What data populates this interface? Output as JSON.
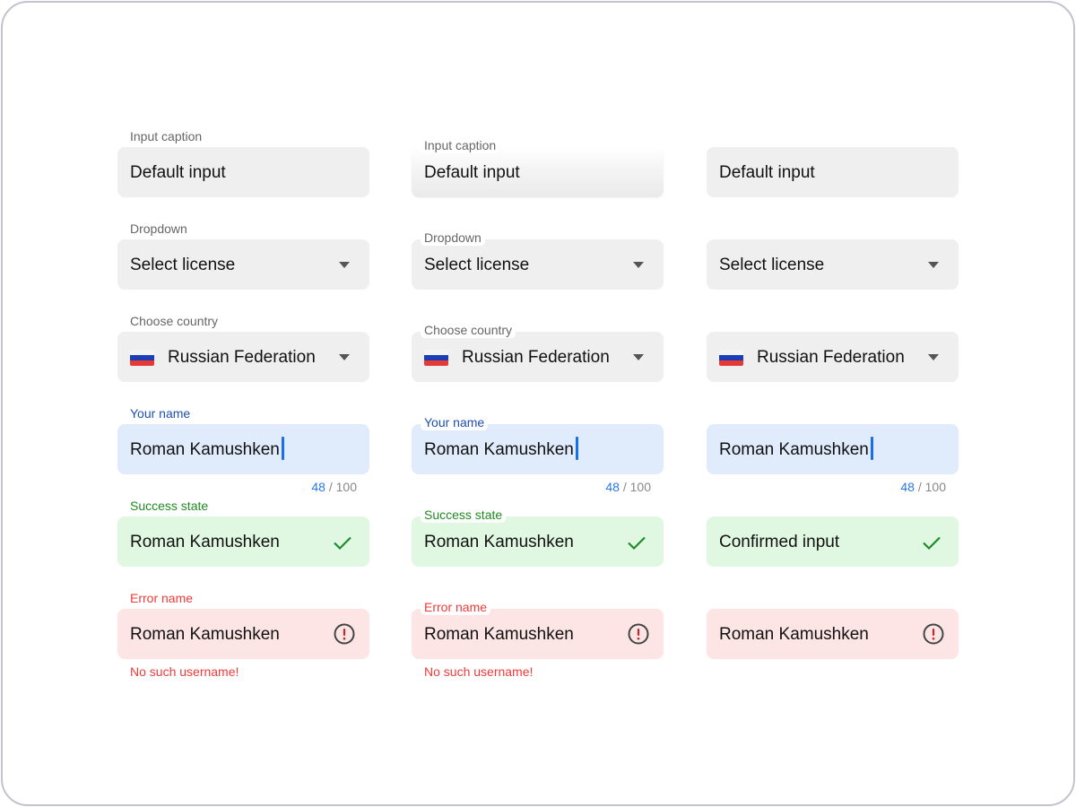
{
  "colors": {
    "field_bg": "#efefef",
    "focus_bg": "#e0ecfc",
    "success_bg": "#e0f7e1",
    "error_bg": "#fde5e5",
    "accent": "#1a6fe8",
    "success": "#208a20",
    "error": "#f03a3a"
  },
  "columns": [
    {
      "variant": "label-above",
      "rows": [
        {
          "type": "text",
          "label": "Input caption",
          "value": "Default input"
        },
        {
          "type": "dropdown",
          "label": "Dropdown",
          "value": "Select license",
          "icon": "caret-down-icon"
        },
        {
          "type": "country",
          "label": "Choose country",
          "value": "Russian Federation",
          "icon": "caret-down-icon",
          "flag": "russia-flag-icon"
        },
        {
          "type": "focus",
          "label": "Your name",
          "value": "Roman Kamushken",
          "counter_current": "48",
          "counter_sep": " / ",
          "counter_max": "100"
        },
        {
          "type": "success",
          "label": "Success state",
          "value": "Roman Kamushken",
          "icon": "check-icon"
        },
        {
          "type": "error",
          "label": "Error name",
          "value": "Roman Kamushken",
          "icon": "alert-circle-icon",
          "helper": "No such username!"
        }
      ]
    },
    {
      "variant": "label-inset",
      "rows": [
        {
          "type": "text",
          "label": "Input caption",
          "value": "Default input"
        },
        {
          "type": "dropdown",
          "label": "Dropdown",
          "value": "Select license",
          "icon": "caret-down-icon"
        },
        {
          "type": "country",
          "label": "Choose country",
          "value": "Russian Federation",
          "icon": "caret-down-icon",
          "flag": "russia-flag-icon"
        },
        {
          "type": "focus",
          "label": "Your name",
          "value": "Roman Kamushken",
          "counter_current": "48",
          "counter_sep": " / ",
          "counter_max": "100"
        },
        {
          "type": "success",
          "label": "Success state",
          "value": "Roman Kamushken",
          "icon": "check-icon"
        },
        {
          "type": "error",
          "label": "Error name",
          "value": "Roman Kamushken",
          "icon": "alert-circle-icon",
          "helper": "No such username!"
        }
      ]
    },
    {
      "variant": "no-label",
      "rows": [
        {
          "type": "text",
          "value": "Default input"
        },
        {
          "type": "dropdown",
          "value": "Select license",
          "icon": "caret-down-icon"
        },
        {
          "type": "country",
          "value": "Russian Federation",
          "icon": "caret-down-icon",
          "flag": "russia-flag-icon"
        },
        {
          "type": "focus",
          "value": "Roman Kamushken",
          "counter_current": "48",
          "counter_sep": " / ",
          "counter_max": "100"
        },
        {
          "type": "success",
          "value": "Confirmed input",
          "icon": "check-icon"
        },
        {
          "type": "error",
          "value": "Roman Kamushken",
          "icon": "alert-circle-icon"
        }
      ]
    }
  ]
}
